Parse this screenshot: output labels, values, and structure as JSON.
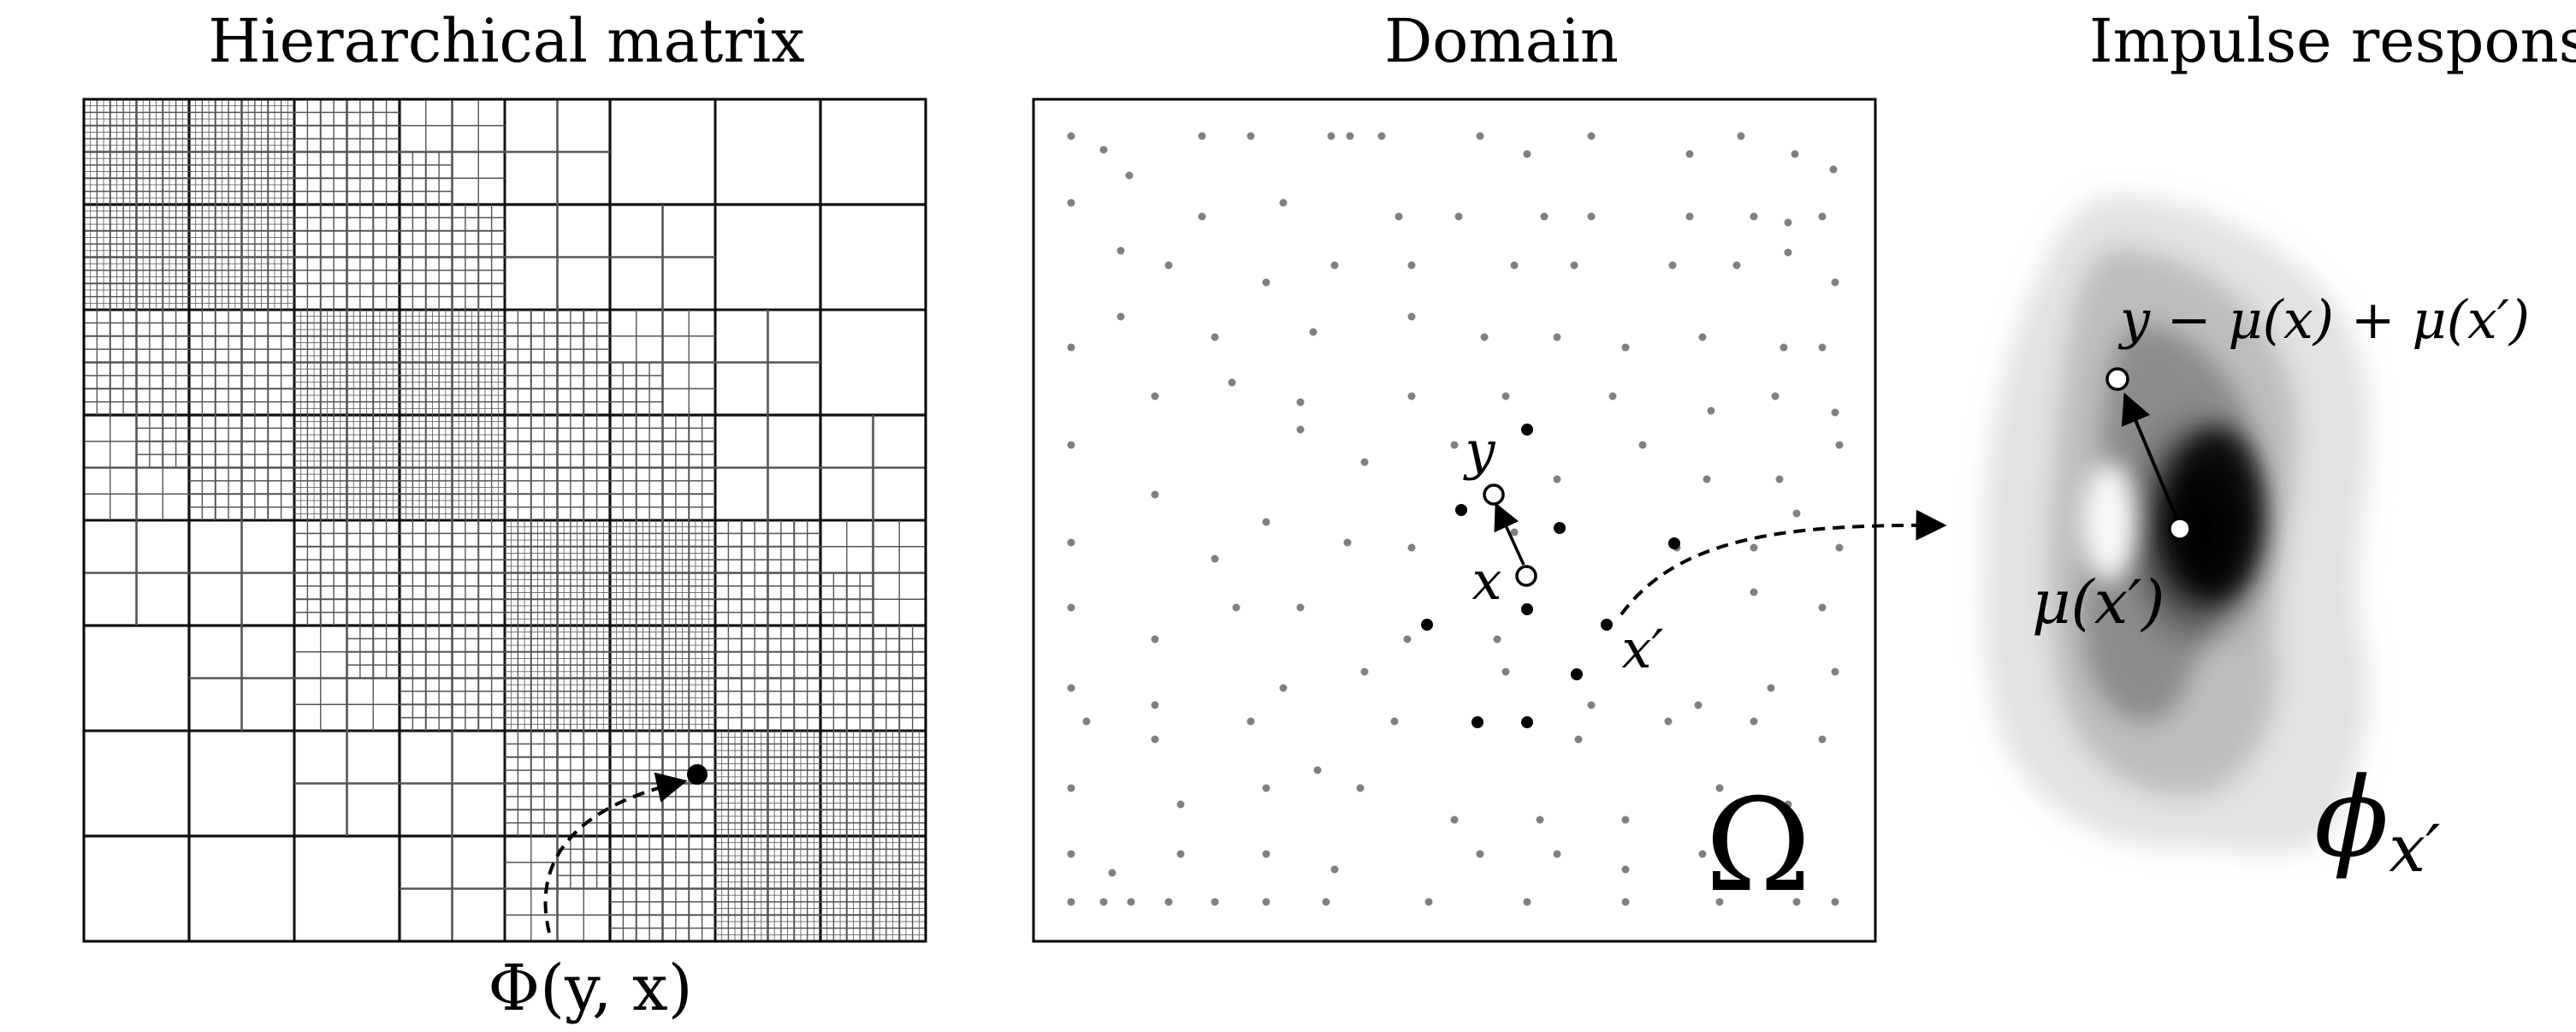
{
  "panels": {
    "hmatrix": {
      "title": "Hierarchical matrix"
    },
    "domain": {
      "title": "Domain"
    },
    "impulse": {
      "title": "Impulse response"
    }
  },
  "labels": {
    "phi_kernel": "Φ(y, x)",
    "y": "y",
    "x": "x",
    "x_prime": "x′",
    "omega": "Ω",
    "shifted": "y − μ(x) + μ(x′)",
    "mu_x_prime": "μ(x′)",
    "phi_x_prime": "ϕ",
    "phi_x_prime_sub": "x′"
  },
  "colors": {
    "ink": "#000000",
    "grid_line": "#666666",
    "dot_gray": "#808080",
    "background": "#ffffff"
  }
}
